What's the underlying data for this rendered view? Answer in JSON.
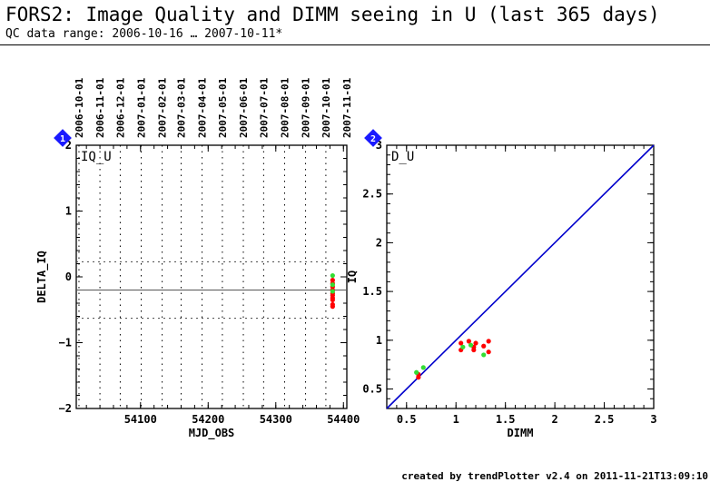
{
  "header": {
    "title": "FORS2: Image Quality and DIMM seeing in U (last 365 days)",
    "range": "QC data range: 2006-10-16 … 2007-10-11*"
  },
  "footer": "created by trendPlotter v2.4 on 2011-11-21T13:09:10",
  "colors": {
    "red": "#ff0000",
    "green": "#33dd33",
    "blue": "#0000cc",
    "badge": "#1a1aff"
  },
  "chart_data": [
    {
      "type": "scatter",
      "badge": "1",
      "panel_label": "IQ_U",
      "xlabel": "MJD_OBS",
      "ylabel": "DELTA_IQ",
      "xlim": [
        54005,
        54405
      ],
      "ylim": [
        -2,
        2
      ],
      "xticks": [
        54100,
        54200,
        54300,
        54400
      ],
      "yticks": [
        -2,
        -1,
        0,
        1,
        2
      ],
      "date_ticks": [
        {
          "label": "2006-10-01",
          "mjd": 54009
        },
        {
          "label": "2006-11-01",
          "mjd": 54040
        },
        {
          "label": "2006-12-01",
          "mjd": 54070
        },
        {
          "label": "2007-01-01",
          "mjd": 54101
        },
        {
          "label": "2007-02-01",
          "mjd": 54132
        },
        {
          "label": "2007-03-01",
          "mjd": 54160
        },
        {
          "label": "2007-04-01",
          "mjd": 54191
        },
        {
          "label": "2007-05-01",
          "mjd": 54221
        },
        {
          "label": "2007-06-01",
          "mjd": 54252
        },
        {
          "label": "2007-07-01",
          "mjd": 54282
        },
        {
          "label": "2007-08-01",
          "mjd": 54313
        },
        {
          "label": "2007-09-01",
          "mjd": 54344
        },
        {
          "label": "2007-10-01",
          "mjd": 54374
        },
        {
          "label": "2007-11-01",
          "mjd": 54405
        }
      ],
      "mean_line": -0.2,
      "limit_lines": [
        0.23,
        -0.63
      ],
      "points_red": [
        [
          54384,
          -0.05
        ],
        [
          54384,
          -0.1
        ],
        [
          54384,
          -0.15
        ],
        [
          54384,
          -0.2
        ],
        [
          54384,
          -0.25
        ],
        [
          54384,
          -0.28
        ],
        [
          54384,
          -0.32
        ],
        [
          54384,
          -0.35
        ],
        [
          54384,
          -0.42
        ],
        [
          54384,
          -0.45
        ]
      ],
      "points_green": [
        [
          54384,
          0.02
        ],
        [
          54384,
          -0.12
        ],
        [
          54384,
          -0.22
        ]
      ]
    },
    {
      "type": "scatter",
      "badge": "2",
      "panel_label": "D_U",
      "xlabel": "DIMM",
      "ylabel": "IQ",
      "xlim": [
        0.3,
        3
      ],
      "ylim": [
        0.3,
        3
      ],
      "xticks": [
        0.5,
        1,
        1.5,
        2,
        2.5,
        3
      ],
      "yticks": [
        0.5,
        1,
        1.5,
        2,
        2.5,
        3
      ],
      "diagonal": true,
      "points_red": [
        [
          0.62,
          0.62
        ],
        [
          0.62,
          0.65
        ],
        [
          1.05,
          0.97
        ],
        [
          1.05,
          0.9
        ],
        [
          1.13,
          0.99
        ],
        [
          1.18,
          0.93
        ],
        [
          1.18,
          0.9
        ],
        [
          1.2,
          0.97
        ],
        [
          1.28,
          0.94
        ],
        [
          1.33,
          0.99
        ],
        [
          1.33,
          0.88
        ]
      ],
      "points_green": [
        [
          0.6,
          0.67
        ],
        [
          0.67,
          0.72
        ],
        [
          1.07,
          0.93
        ],
        [
          1.15,
          0.95
        ],
        [
          1.28,
          0.85
        ]
      ]
    }
  ]
}
